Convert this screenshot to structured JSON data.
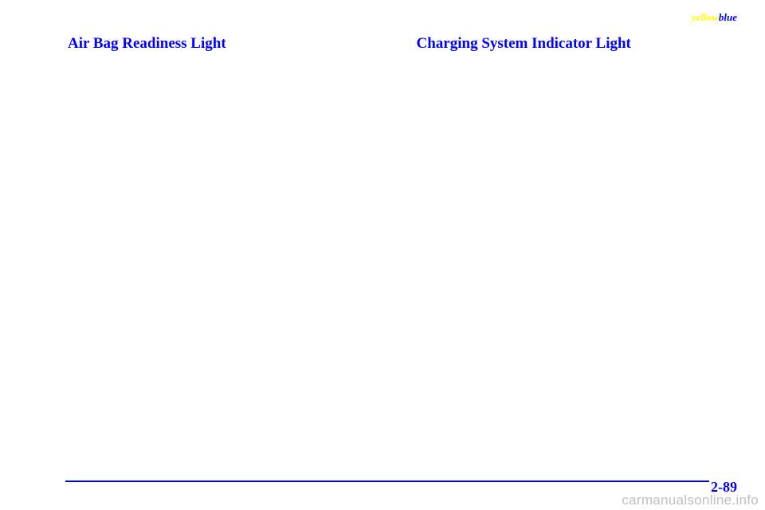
{
  "header": {
    "yellow_text": "yellow",
    "blue_text": "blue"
  },
  "left": {
    "heading": "Air Bag Readiness Light"
  },
  "right": {
    "heading": "Charging System Indicator Light"
  },
  "footer": {
    "page_number": "2-89",
    "watermark": "carmanualsonline.info"
  },
  "colors": {
    "heading": "#0000ff",
    "rule": "#0000ff",
    "page_num": "#0000ff",
    "watermark": "#bfbfbf",
    "yellow": "#ffff00"
  }
}
